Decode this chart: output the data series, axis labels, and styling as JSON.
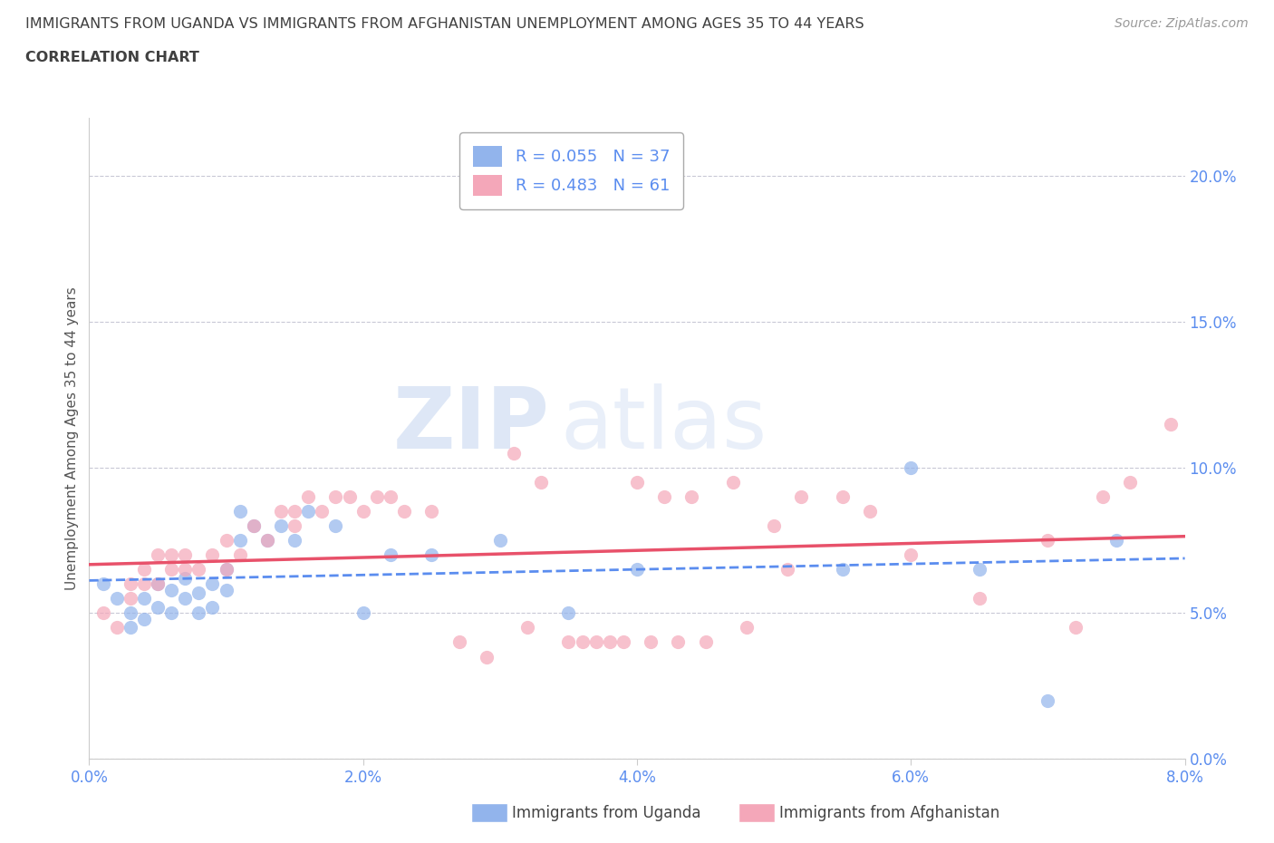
{
  "title_line1": "IMMIGRANTS FROM UGANDA VS IMMIGRANTS FROM AFGHANISTAN UNEMPLOYMENT AMONG AGES 35 TO 44 YEARS",
  "title_line2": "CORRELATION CHART",
  "source_text": "Source: ZipAtlas.com",
  "ylabel": "Unemployment Among Ages 35 to 44 years",
  "xlim": [
    0.0,
    0.08
  ],
  "ylim": [
    0.0,
    0.22
  ],
  "xticks": [
    0.0,
    0.02,
    0.04,
    0.06,
    0.08
  ],
  "xtick_labels": [
    "0.0%",
    "2.0%",
    "4.0%",
    "6.0%",
    "8.0%"
  ],
  "yticks": [
    0.0,
    0.05,
    0.1,
    0.15,
    0.2
  ],
  "ytick_labels": [
    "0.0%",
    "5.0%",
    "10.0%",
    "15.0%",
    "20.0%"
  ],
  "legend_labels": [
    "Immigrants from Uganda",
    "Immigrants from Afghanistan"
  ],
  "uganda_R": 0.055,
  "uganda_N": 37,
  "afghanistan_R": 0.483,
  "afghanistan_N": 61,
  "uganda_color": "#92B4EC",
  "afghanistan_color": "#F4A7B9",
  "uganda_line_color": "#5B8DEF",
  "afghanistan_line_color": "#E8516A",
  "title_color": "#404040",
  "axis_tick_color": "#5B8DEF",
  "grid_color": "#BBBBCC",
  "watermark_color": "#C8D8F0",
  "uganda_x": [
    0.001,
    0.002,
    0.003,
    0.003,
    0.004,
    0.004,
    0.005,
    0.005,
    0.006,
    0.006,
    0.007,
    0.007,
    0.008,
    0.008,
    0.009,
    0.009,
    0.01,
    0.01,
    0.011,
    0.011,
    0.012,
    0.013,
    0.014,
    0.015,
    0.016,
    0.018,
    0.02,
    0.022,
    0.025,
    0.03,
    0.035,
    0.04,
    0.055,
    0.06,
    0.065,
    0.07,
    0.075
  ],
  "uganda_y": [
    0.06,
    0.055,
    0.05,
    0.045,
    0.055,
    0.048,
    0.06,
    0.052,
    0.058,
    0.05,
    0.062,
    0.055,
    0.05,
    0.057,
    0.06,
    0.052,
    0.065,
    0.058,
    0.085,
    0.075,
    0.08,
    0.075,
    0.08,
    0.075,
    0.085,
    0.08,
    0.05,
    0.07,
    0.07,
    0.075,
    0.05,
    0.065,
    0.065,
    0.1,
    0.065,
    0.02,
    0.075
  ],
  "afghanistan_x": [
    0.001,
    0.002,
    0.003,
    0.003,
    0.004,
    0.004,
    0.005,
    0.005,
    0.006,
    0.006,
    0.007,
    0.007,
    0.008,
    0.009,
    0.01,
    0.01,
    0.011,
    0.012,
    0.013,
    0.014,
    0.015,
    0.015,
    0.016,
    0.017,
    0.018,
    0.019,
    0.02,
    0.021,
    0.022,
    0.023,
    0.025,
    0.027,
    0.029,
    0.032,
    0.035,
    0.038,
    0.04,
    0.042,
    0.044,
    0.047,
    0.05,
    0.052,
    0.055,
    0.057,
    0.06,
    0.065,
    0.07,
    0.072,
    0.074,
    0.076,
    0.031,
    0.033,
    0.036,
    0.037,
    0.039,
    0.041,
    0.043,
    0.045,
    0.048,
    0.051,
    0.079
  ],
  "afghanistan_y": [
    0.05,
    0.045,
    0.06,
    0.055,
    0.06,
    0.065,
    0.07,
    0.06,
    0.07,
    0.065,
    0.065,
    0.07,
    0.065,
    0.07,
    0.065,
    0.075,
    0.07,
    0.08,
    0.075,
    0.085,
    0.085,
    0.08,
    0.09,
    0.085,
    0.09,
    0.09,
    0.085,
    0.09,
    0.09,
    0.085,
    0.085,
    0.04,
    0.035,
    0.045,
    0.04,
    0.04,
    0.095,
    0.09,
    0.09,
    0.095,
    0.08,
    0.09,
    0.09,
    0.085,
    0.07,
    0.055,
    0.075,
    0.045,
    0.09,
    0.095,
    0.105,
    0.095,
    0.04,
    0.04,
    0.04,
    0.04,
    0.04,
    0.04,
    0.045,
    0.065,
    0.115
  ]
}
